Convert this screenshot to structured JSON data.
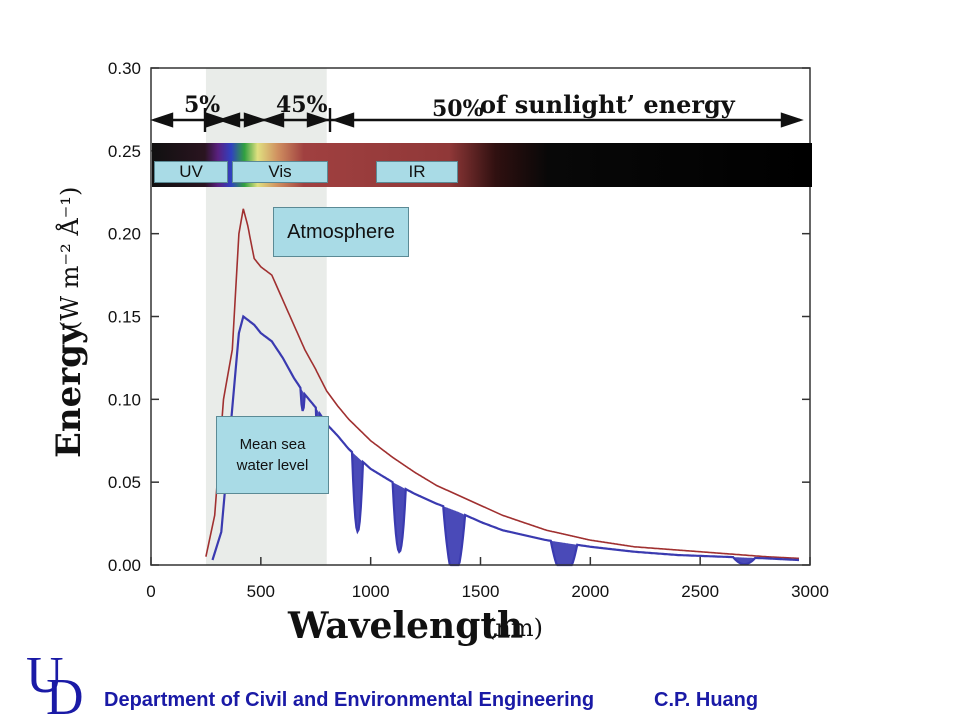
{
  "chart_data": {
    "type": "line",
    "title": "",
    "xlabel": "Wavelength",
    "xlabel_unit": "(nm)",
    "ylabel": "Energy",
    "ylabel_unit": "(W m⁻² Å⁻¹)",
    "xlim": [
      0,
      3000
    ],
    "ylim": [
      0,
      0.3
    ],
    "x_ticks": [
      "0",
      "500",
      "1000",
      "1500",
      "2000",
      "2500",
      "3000"
    ],
    "y_ticks": [
      "0.00",
      "0.05",
      "0.10",
      "0.15",
      "0.20",
      "0.25",
      "0.30"
    ],
    "grid": false,
    "colors": {
      "top_of_atmosphere": "#a03030",
      "sea_level": "#3a3ab0",
      "absorption_fill": "#4a4ab8",
      "shade": "#e8ebe8"
    },
    "series": [
      {
        "name": "Atmosphere",
        "x": [
          250,
          290,
          330,
          370,
          400,
          420,
          440,
          470,
          500,
          550,
          600,
          650,
          700,
          750,
          800,
          850,
          900,
          1000,
          1100,
          1200,
          1300,
          1400,
          1500,
          1600,
          1800,
          2000,
          2200,
          2400,
          2600,
          2800,
          2950
        ],
        "values": [
          0.005,
          0.03,
          0.1,
          0.13,
          0.2,
          0.215,
          0.205,
          0.185,
          0.18,
          0.175,
          0.16,
          0.145,
          0.13,
          0.118,
          0.105,
          0.096,
          0.088,
          0.075,
          0.065,
          0.056,
          0.048,
          0.042,
          0.036,
          0.03,
          0.021,
          0.015,
          0.011,
          0.009,
          0.007,
          0.005,
          0.004
        ]
      },
      {
        "name": "Mean sea water level",
        "x": [
          280,
          320,
          360,
          400,
          420,
          440,
          470,
          500,
          550,
          600,
          650,
          700,
          750,
          800,
          850,
          900,
          1000,
          1100,
          1200,
          1300,
          1400,
          1500,
          1600,
          1800,
          2000,
          2200,
          2400,
          2600,
          2800,
          2950
        ],
        "values": [
          0.003,
          0.02,
          0.08,
          0.14,
          0.15,
          0.148,
          0.145,
          0.14,
          0.135,
          0.125,
          0.113,
          0.103,
          0.095,
          0.085,
          0.078,
          0.07,
          0.058,
          0.05,
          0.043,
          0.037,
          0.032,
          0.026,
          0.021,
          0.015,
          0.011,
          0.008,
          0.006,
          0.005,
          0.004,
          0.003
        ]
      }
    ],
    "absorption_bands": [
      {
        "center": 690,
        "depth": 0.012,
        "width": 20
      },
      {
        "center": 760,
        "depth": 0.02,
        "width": 20
      },
      {
        "center": 940,
        "depth": 0.045,
        "width": 50
      },
      {
        "center": 1130,
        "depth": 0.04,
        "width": 60
      },
      {
        "center": 1380,
        "depth": 0.04,
        "width": 100
      },
      {
        "center": 1880,
        "depth": 0.02,
        "width": 120
      },
      {
        "center": 2700,
        "depth": 0.004,
        "width": 100
      }
    ],
    "spectrum_bands": [
      {
        "label": "5%",
        "from": 0,
        "to": 400
      },
      {
        "label": "45%",
        "from": 400,
        "to": 800
      },
      {
        "label": "50% of sunlight’ energy",
        "from": 800,
        "to": 3000
      }
    ],
    "annotations": {
      "pct_uv": "5%",
      "pct_vis": "45%",
      "pct_ir": "50%",
      "sunlight_text": "of sunlight’ energy"
    }
  },
  "tags": {
    "uv": "UV",
    "vis": "Vis",
    "ir": "IR",
    "atmosphere": "Atmosphere",
    "sea_line1": "Mean sea",
    "sea_line2": "water level"
  },
  "footer": {
    "department": "Department of Civil and Environmental Engineering",
    "author": "C.P. Huang",
    "logo_letters": "UD"
  }
}
